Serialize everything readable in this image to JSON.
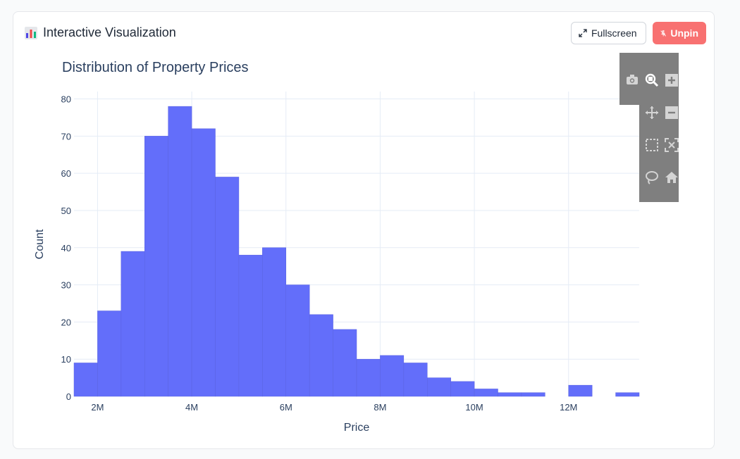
{
  "panel": {
    "title": "Interactive Visualization",
    "fullscreen_label": "Fullscreen",
    "unpin_label": "Unpin"
  },
  "modebar": {
    "icons": [
      "camera-icon",
      "zoom-icon",
      "zoom-in-icon",
      "pan-icon",
      "zoom-out-icon",
      "box-select-icon",
      "autoscale-icon",
      "lasso-icon",
      "home-icon"
    ]
  },
  "colors": {
    "bar": "#636efa",
    "grid": "#e5ecf6",
    "unpin": "#f87171",
    "modebar_bg": "#7f7f7f"
  },
  "chart_data": {
    "type": "bar",
    "title": "Distribution of Property Prices",
    "xlabel": "Price",
    "ylabel": "Count",
    "bin_width": 500000,
    "bins_start": [
      1500000,
      2000000,
      2500000,
      3000000,
      3500000,
      4000000,
      4500000,
      5000000,
      5500000,
      6000000,
      6500000,
      7000000,
      7500000,
      8000000,
      8500000,
      9000000,
      9500000,
      10000000,
      10500000,
      11000000,
      11500000,
      12000000,
      12500000,
      13000000
    ],
    "values": [
      9,
      23,
      39,
      70,
      78,
      72,
      59,
      38,
      40,
      30,
      22,
      18,
      10,
      11,
      9,
      5,
      4,
      2,
      1,
      1,
      0,
      3,
      0,
      1
    ],
    "xlim": [
      1500000,
      13500000
    ],
    "ylim": [
      0,
      82
    ],
    "x_ticks": [
      {
        "value": 2000000,
        "label": "2M"
      },
      {
        "value": 4000000,
        "label": "4M"
      },
      {
        "value": 6000000,
        "label": "6M"
      },
      {
        "value": 8000000,
        "label": "8M"
      },
      {
        "value": 10000000,
        "label": "10M"
      },
      {
        "value": 12000000,
        "label": "12M"
      }
    ],
    "y_ticks": [
      {
        "value": 0,
        "label": "0"
      },
      {
        "value": 10,
        "label": "10"
      },
      {
        "value": 20,
        "label": "20"
      },
      {
        "value": 30,
        "label": "30"
      },
      {
        "value": 40,
        "label": "40"
      },
      {
        "value": 50,
        "label": "50"
      },
      {
        "value": 60,
        "label": "60"
      },
      {
        "value": 70,
        "label": "70"
      },
      {
        "value": 80,
        "label": "80"
      }
    ],
    "grid": true,
    "legend": false
  }
}
